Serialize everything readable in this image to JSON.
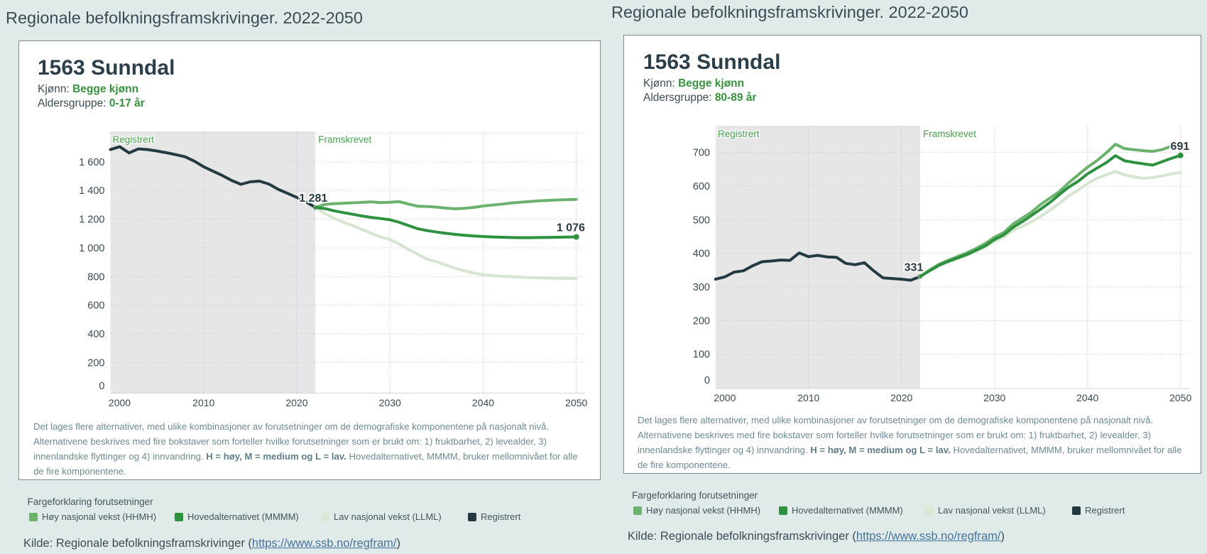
{
  "page": {
    "title": "Regionale befolkningsframskrivinger. 2022-2050"
  },
  "card": {
    "title": "1563 Sunndal",
    "kjonn_label": "Kjønn:",
    "kjonn_value": "Begge kjønn",
    "aldersgruppe_label": "Aldersgruppe:"
  },
  "footnote": {
    "lines": [
      [
        {
          "t": "Det lages flere alternativer, med ulike kombinasjoner av forutsetninger om de demografiske komponentene på nasjonalt nivå.",
          "b": false
        }
      ],
      [
        {
          "t": "Alternativene beskrives med fire bokstaver som forteller hvilke forutsetninger som er brukt om: 1) fruktbarhet, 2) levealder, 3)",
          "b": false
        }
      ],
      [
        {
          "t": "innenlandske flyttinger og 4) innvandring. ",
          "b": false
        },
        {
          "t": "H = høy, M = medium og L = lav.",
          "b": true
        },
        {
          "t": " Hovedalternativet, MMMM, bruker mellomnivået for alle",
          "b": false
        }
      ],
      [
        {
          "t": "de fire komponentene.",
          "b": false
        }
      ]
    ]
  },
  "legend": {
    "title": "Fargeforklaring forutsetninger",
    "items": [
      {
        "label": "Høy nasjonal vekst (HHMH)",
        "color": "#6bb26c"
      },
      {
        "label": "Hovedalternativet (MMMM)",
        "color": "#2e9140"
      },
      {
        "label": "Lav nasjonal vekst (LLML)",
        "color": "#d9e8d3"
      },
      {
        "label": "Registrert",
        "color": "#233840"
      }
    ]
  },
  "kilde": {
    "prefix": "Kilde: Regionale befolkningsframskrivinger (",
    "link_text": "https://www.ssb.no/regfram/",
    "suffix": ")"
  },
  "colors": {
    "background": "#e0ebe9",
    "plot_band": "#e6e6e6",
    "registered_line": "#243a43",
    "hhmh_line": "#6bb26c",
    "mmmm_line": "#2e9140",
    "llml_line": "#d5e5cf",
    "zone_label": "#4aa14f",
    "tick_label": "#3a4a52",
    "data_label": "#2b3a42",
    "grid_h": "#c5c3d0",
    "grid_v": "#a9a3c9",
    "axis_line": "#d4d4d4"
  },
  "chart_data": [
    {
      "type": "line",
      "title": "1563 Sunndal",
      "subtitle_kjonn": "Begge kjønn",
      "subtitle_aldersgruppe": "0-17 år",
      "zone_labels": {
        "registered": "Registrert",
        "projected": "Framskrevet"
      },
      "xlabel": "",
      "ylabel": "",
      "x_registered_range": [
        2000,
        2022
      ],
      "x_projected_range": [
        2022,
        2050
      ],
      "xticks": [
        2000,
        2010,
        2020,
        2030,
        2040,
        2050
      ],
      "yticks": [
        0,
        200,
        400,
        600,
        800,
        1000,
        1200,
        1400,
        1600
      ],
      "ytick_labels": [
        "0",
        "200",
        "400",
        "600",
        "800",
        "1 000",
        "1 200",
        "1 400",
        "1 600"
      ],
      "ylim": [
        0,
        1812
      ],
      "grid": true,
      "legend_position": "bottom",
      "series": [
        {
          "name": "Registrert",
          "color_key": "registered_line",
          "start_year": 2000,
          "values": [
            1685,
            1705,
            1662,
            1690,
            1685,
            1675,
            1663,
            1650,
            1635,
            1605,
            1565,
            1535,
            1505,
            1470,
            1443,
            1460,
            1465,
            1445,
            1408,
            1380,
            1352,
            1320,
            1281
          ]
        },
        {
          "name": "Lav nasjonal vekst (LLML)",
          "color_key": "llml_line",
          "start_year": 2022,
          "values": [
            1281,
            1240,
            1206,
            1178,
            1155,
            1128,
            1100,
            1076,
            1058,
            1025,
            988,
            955,
            920,
            903,
            880,
            858,
            840,
            825,
            812,
            806,
            802,
            799,
            796,
            793,
            791,
            789,
            788,
            787,
            787
          ]
        },
        {
          "name": "Høy nasjonal vekst (HHMH)",
          "color_key": "hhmh_line",
          "start_year": 2022,
          "values": [
            1281,
            1303,
            1308,
            1311,
            1314,
            1317,
            1320,
            1315,
            1318,
            1322,
            1305,
            1290,
            1288,
            1284,
            1277,
            1272,
            1276,
            1282,
            1292,
            1298,
            1305,
            1312,
            1318,
            1323,
            1328,
            1331,
            1334,
            1336,
            1338
          ]
        },
        {
          "name": "Hovedalternativet (MMMM)",
          "color_key": "mmmm_line",
          "start_year": 2022,
          "values": [
            1281,
            1274,
            1258,
            1246,
            1234,
            1222,
            1212,
            1204,
            1196,
            1178,
            1155,
            1133,
            1120,
            1110,
            1101,
            1094,
            1088,
            1083,
            1079,
            1076,
            1074,
            1072,
            1071,
            1071,
            1072,
            1073,
            1074,
            1075,
            1076
          ]
        }
      ],
      "annotations": [
        {
          "text": "1 281",
          "year": 2022,
          "value": 1281,
          "marker": "open"
        },
        {
          "text": "1 076",
          "year": 2050,
          "value": 1076,
          "marker": "filled"
        }
      ]
    },
    {
      "type": "line",
      "title": "1563 Sunndal",
      "subtitle_kjonn": "Begge kjønn",
      "subtitle_aldersgruppe": "80-89 år",
      "zone_labels": {
        "registered": "Registrert",
        "projected": "Framskrevet"
      },
      "xlabel": "",
      "ylabel": "",
      "x_registered_range": [
        2000,
        2022
      ],
      "x_projected_range": [
        2022,
        2050
      ],
      "xticks": [
        2000,
        2010,
        2020,
        2030,
        2040,
        2050
      ],
      "yticks": [
        0,
        100,
        200,
        300,
        400,
        500,
        600,
        700
      ],
      "ytick_labels": [
        "0",
        "100",
        "200",
        "300",
        "400",
        "500",
        "600",
        "700"
      ],
      "ylim": [
        0,
        779
      ],
      "grid": true,
      "legend_position": "bottom",
      "series": [
        {
          "name": "Registrert",
          "color_key": "registered_line",
          "start_year": 2000,
          "values": [
            323,
            330,
            344,
            348,
            363,
            375,
            377,
            380,
            379,
            401,
            390,
            394,
            389,
            388,
            370,
            366,
            372,
            348,
            327,
            325,
            323,
            320,
            331
          ]
        },
        {
          "name": "Lav nasjonal vekst (LLML)",
          "color_key": "llml_line",
          "start_year": 2022,
          "values": [
            331,
            347,
            362,
            373,
            383,
            394,
            406,
            419,
            435,
            448,
            468,
            480,
            494,
            510,
            529,
            549,
            571,
            588,
            607,
            623,
            633,
            643,
            633,
            627,
            623,
            625,
            630,
            636,
            640
          ]
        },
        {
          "name": "Høy nasjonal vekst (HHMH)",
          "color_key": "hhmh_line",
          "start_year": 2022,
          "values": [
            331,
            350,
            367,
            379,
            390,
            401,
            414,
            429,
            448,
            462,
            487,
            505,
            523,
            546,
            565,
            584,
            610,
            633,
            656,
            675,
            698,
            724,
            711,
            708,
            705,
            703,
            708,
            718,
            727
          ]
        },
        {
          "name": "Hovedalternativet (MMMM)",
          "color_key": "mmmm_line",
          "start_year": 2022,
          "values": [
            331,
            348,
            364,
            376,
            386,
            396,
            409,
            422,
            441,
            455,
            477,
            494,
            513,
            532,
            552,
            575,
            597,
            614,
            636,
            653,
            669,
            690,
            675,
            670,
            666,
            662,
            672,
            682,
            691
          ]
        }
      ],
      "annotations": [
        {
          "text": "331",
          "year": 2022,
          "value": 331,
          "marker": "open"
        },
        {
          "text": "691",
          "year": 2050,
          "value": 691,
          "marker": "filled"
        }
      ]
    }
  ]
}
